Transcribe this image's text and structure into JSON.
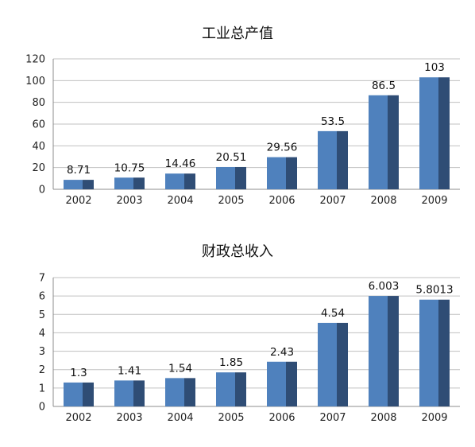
{
  "chart_data": [
    {
      "type": "bar",
      "title": "工业总产值",
      "categories": [
        "2002",
        "2003",
        "2004",
        "2005",
        "2006",
        "2007",
        "2008",
        "2009"
      ],
      "values": [
        8.71,
        10.75,
        14.46,
        20.51,
        29.56,
        53.5,
        86.5,
        103
      ],
      "value_labels": [
        "8.71",
        "10.75",
        "14.46",
        "20.51",
        "29.56",
        "53.5",
        "86.5",
        "103"
      ],
      "y_ticks": [
        "0",
        "20",
        "40",
        "60",
        "80",
        "100",
        "120"
      ],
      "ylim": [
        0,
        120
      ],
      "grid": true,
      "xlabel": "",
      "ylabel": ""
    },
    {
      "type": "bar",
      "title": "财政总收入",
      "categories": [
        "2002",
        "2003",
        "2004",
        "2005",
        "2006",
        "2007",
        "2008",
        "2009"
      ],
      "values": [
        1.3,
        1.41,
        1.54,
        1.85,
        2.43,
        4.54,
        6.003,
        5.8013
      ],
      "value_labels": [
        "1.3",
        "1.41",
        "1.54",
        "1.85",
        "2.43",
        "4.54",
        "6.003",
        "5.8013"
      ],
      "y_ticks": [
        "0",
        "1",
        "2",
        "3",
        "4",
        "5",
        "6",
        "7"
      ],
      "ylim": [
        0,
        7
      ],
      "grid": true,
      "xlabel": "",
      "ylabel": ""
    }
  ],
  "colors": {
    "bar_front": "#4f81bd",
    "bar_side": "#2f4d75",
    "gridline": "#c0c0c0",
    "axis": "#8c8c8c"
  }
}
